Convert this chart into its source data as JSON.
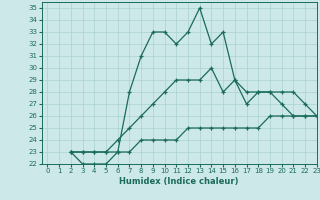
{
  "xlabel": "Humidex (Indice chaleur)",
  "bg_color": "#cde8e8",
  "line_color": "#1a6b5a",
  "grid_color": "#aad0d0",
  "xlim": [
    -0.5,
    23
  ],
  "ylim": [
    22,
    35.5
  ],
  "xticks": [
    0,
    1,
    2,
    3,
    4,
    5,
    6,
    7,
    8,
    9,
    10,
    11,
    12,
    13,
    14,
    15,
    16,
    17,
    18,
    19,
    20,
    21,
    22,
    23
  ],
  "yticks": [
    22,
    23,
    24,
    25,
    26,
    27,
    28,
    29,
    30,
    31,
    32,
    33,
    34,
    35
  ],
  "line1_x": [
    2,
    3,
    4,
    5,
    6,
    7,
    8,
    9,
    10,
    11,
    12,
    13,
    14,
    15,
    16,
    17,
    18,
    19,
    20,
    21,
    22,
    23
  ],
  "line1_y": [
    23,
    22,
    22,
    22,
    23,
    28,
    31,
    33,
    33,
    32,
    33,
    35,
    32,
    33,
    29,
    28,
    28,
    28,
    27,
    26,
    26,
    26
  ],
  "line2_x": [
    2,
    3,
    4,
    5,
    6,
    7,
    8,
    9,
    10,
    11,
    12,
    13,
    14,
    15,
    16,
    17,
    18,
    19,
    20,
    21,
    22,
    23
  ],
  "line2_y": [
    23,
    23,
    23,
    23,
    24,
    25,
    26,
    27,
    28,
    29,
    29,
    29,
    30,
    28,
    29,
    27,
    28,
    28,
    28,
    28,
    27,
    26
  ],
  "line3_x": [
    2,
    3,
    4,
    5,
    6,
    7,
    8,
    9,
    10,
    11,
    12,
    13,
    14,
    15,
    16,
    17,
    18,
    19,
    20,
    21,
    22,
    23
  ],
  "line3_y": [
    23,
    23,
    23,
    23,
    23,
    23,
    24,
    24,
    24,
    24,
    25,
    25,
    25,
    25,
    25,
    25,
    25,
    26,
    26,
    26,
    26,
    26
  ]
}
